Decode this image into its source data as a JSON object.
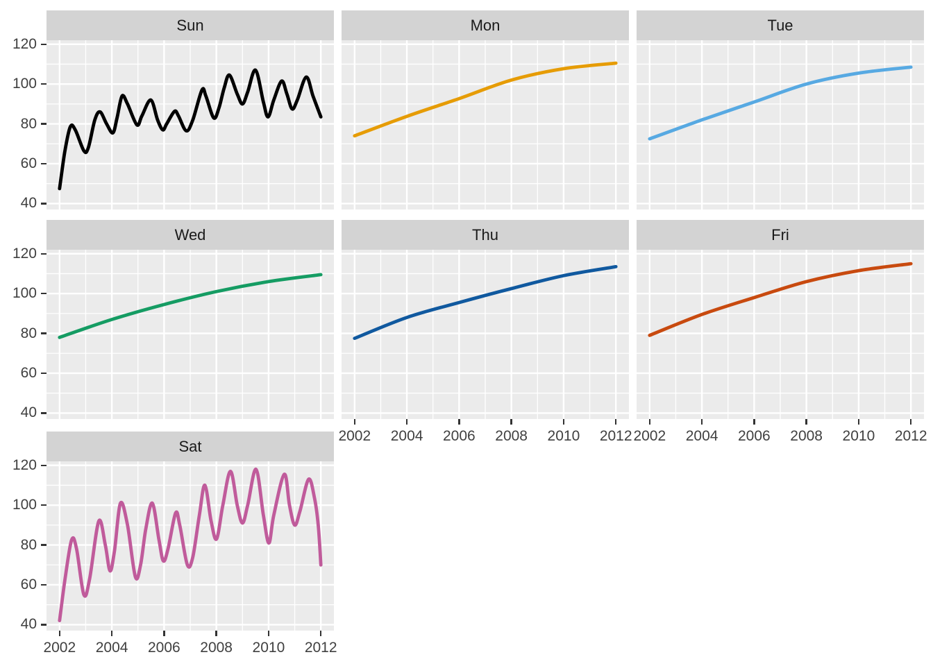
{
  "chart_data": {
    "type": "line",
    "title": "",
    "facet_variable": "day-of-week",
    "grid": true,
    "legend_position": "none",
    "x_domain": [
      2001.5,
      2012.5
    ],
    "y_domain": [
      37,
      122
    ],
    "x_ticks": [
      2002,
      2004,
      2006,
      2008,
      2010,
      2012
    ],
    "y_ticks": [
      120,
      100,
      80,
      60,
      40
    ],
    "x_minor_breaks": [
      2003,
      2005,
      2007,
      2009,
      2011
    ],
    "y_minor_breaks": [
      50,
      70,
      90,
      110
    ],
    "theme": {
      "strip_fill": "#d3d3d3",
      "panel_fill": "#ebebeb",
      "grid_color": "#ffffff",
      "tick_color": "#333333",
      "axis_text_color": "#404040",
      "strip_text_color": "#1a1a1a"
    },
    "facets": [
      {
        "label": "Sun",
        "row": 0,
        "col": 0,
        "color": "#000000",
        "x": [
          2002.0,
          2002.2,
          2002.41,
          2002.6,
          2002.93,
          2003.1,
          2003.35,
          2003.55,
          2003.8,
          2004.04,
          2004.2,
          2004.39,
          2004.6,
          2004.96,
          2005.15,
          2005.49,
          2005.75,
          2005.95,
          2006.1,
          2006.4,
          2006.55,
          2006.85,
          2007.1,
          2007.45,
          2007.6,
          2007.9,
          2008.1,
          2008.3,
          2008.5,
          2008.8,
          2009.0,
          2009.2,
          2009.5,
          2009.8,
          2009.98,
          2010.2,
          2010.5,
          2010.7,
          2010.9,
          2011.1,
          2011.44,
          2011.7,
          2012.0
        ],
        "y": [
          47.5,
          66,
          78.5,
          77,
          66.5,
          68,
          82,
          86,
          80,
          75.5,
          83,
          94,
          90,
          79.5,
          84,
          92,
          82,
          77,
          80,
          86.3,
          84,
          76.5,
          82,
          97,
          94,
          83,
          88,
          98,
          104.5,
          95,
          90,
          96,
          107,
          91,
          83.5,
          92,
          101.5,
          95,
          87.5,
          92,
          103.5,
          94,
          83.5
        ]
      },
      {
        "label": "Mon",
        "row": 0,
        "col": 1,
        "color": "#e69c06",
        "x": [
          2002,
          2004,
          2006,
          2008,
          2010,
          2012
        ],
        "y": [
          74,
          83.8,
          92.7,
          102,
          107.7,
          110.5
        ]
      },
      {
        "label": "Tue",
        "row": 0,
        "col": 2,
        "color": "#57a9e2",
        "x": [
          2002,
          2004,
          2006,
          2008,
          2010,
          2012
        ],
        "y": [
          72.5,
          82,
          91,
          100,
          105.5,
          108.5
        ]
      },
      {
        "label": "Wed",
        "row": 1,
        "col": 0,
        "color": "#159c63",
        "x": [
          2002,
          2004,
          2006,
          2008,
          2010,
          2012
        ],
        "y": [
          78,
          87,
          94.5,
          101,
          106,
          109.5
        ]
      },
      {
        "label": "Thu",
        "row": 1,
        "col": 1,
        "color": "#10599f",
        "x": [
          2002,
          2004,
          2006,
          2008,
          2010,
          2012
        ],
        "y": [
          77.5,
          88,
          95.5,
          102.5,
          109,
          113.5
        ]
      },
      {
        "label": "Fri",
        "row": 1,
        "col": 2,
        "color": "#c84a0f",
        "x": [
          2002,
          2004,
          2006,
          2008,
          2010,
          2012
        ],
        "y": [
          79,
          89.5,
          98,
          106,
          111.5,
          115
        ]
      },
      {
        "label": "Sat",
        "row": 2,
        "col": 0,
        "color": "#c05b9b",
        "x": [
          2002.0,
          2002.2,
          2002.46,
          2002.65,
          2002.93,
          2003.15,
          2003.5,
          2003.75,
          2003.93,
          2004.1,
          2004.33,
          2004.6,
          2004.9,
          2005.1,
          2005.3,
          2005.55,
          2005.8,
          2005.97,
          2006.15,
          2006.44,
          2006.6,
          2006.89,
          2007.1,
          2007.35,
          2007.56,
          2007.8,
          2008.01,
          2008.25,
          2008.54,
          2008.8,
          2009.0,
          2009.2,
          2009.52,
          2009.8,
          2010.01,
          2010.2,
          2010.6,
          2010.8,
          2011.0,
          2011.2,
          2011.53,
          2011.75,
          2011.9,
          2012.0
        ],
        "y": [
          42,
          62,
          82.5,
          78,
          55,
          63,
          92,
          80,
          67,
          77,
          101,
          90,
          64,
          70,
          88,
          101,
          83,
          72,
          78,
          96,
          90,
          70,
          74,
          95,
          110,
          92,
          83,
          100,
          117,
          100,
          91,
          100,
          118,
          95,
          81,
          95,
          115.5,
          100,
          90,
          97,
          113,
          104,
          90,
          70
        ]
      }
    ]
  }
}
